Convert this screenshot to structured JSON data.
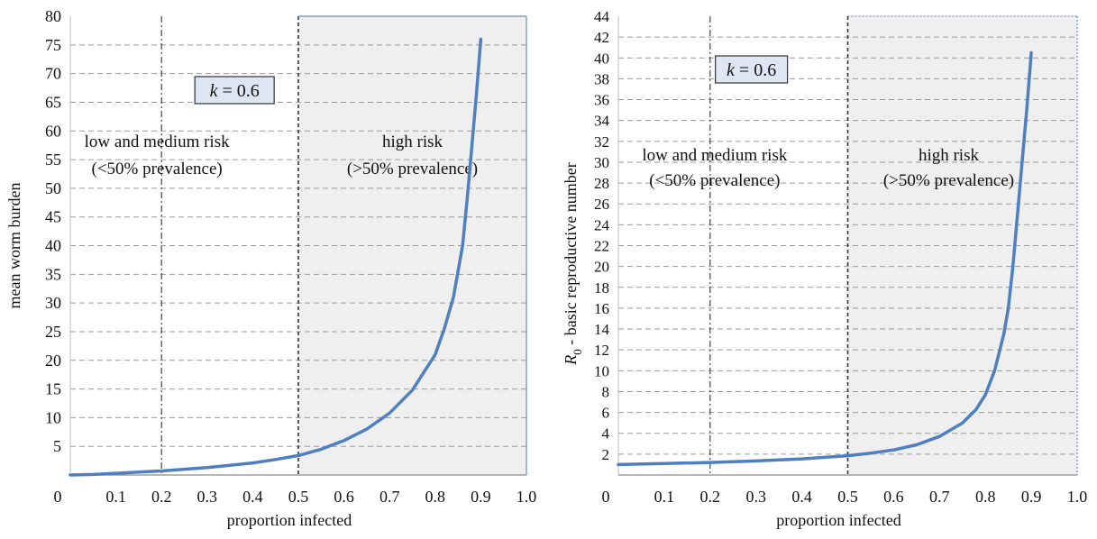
{
  "chart_data": [
    {
      "type": "line",
      "parameter_label": {
        "var": "k",
        "eq": " = ",
        "val": "0.6"
      },
      "xlabel": "proportion infected",
      "ylabel": "mean worm burden",
      "xlim": [
        0,
        1.0
      ],
      "ylim": [
        0,
        80
      ],
      "x_ticks": [
        "0",
        "0.1",
        "0.2",
        "0.3",
        "0.4",
        "0.5",
        "0.6",
        "0.7",
        "0.8",
        "0.9",
        "1.0"
      ],
      "y_ticks": [
        "5",
        "10",
        "15",
        "20",
        "25",
        "30",
        "35",
        "40",
        "45",
        "50",
        "55",
        "60",
        "65",
        "70",
        "75",
        "80"
      ],
      "grid": true,
      "regions": [
        {
          "label_lines": [
            "low and medium risk",
            "(<50% prevalence)"
          ]
        },
        {
          "label_lines": [
            "high risk",
            "(>50% prevalence)"
          ],
          "shaded": true,
          "x_range": [
            0.5,
            1.0
          ]
        }
      ],
      "vertical_lines": [
        0.2,
        0.5
      ],
      "series": [
        {
          "color": "#4f7fbf",
          "x": [
            0.0,
            0.05,
            0.1,
            0.15,
            0.2,
            0.25,
            0.3,
            0.35,
            0.4,
            0.45,
            0.5,
            0.55,
            0.6,
            0.65,
            0.7,
            0.75,
            0.8,
            0.82,
            0.84,
            0.86,
            0.87,
            0.88,
            0.89,
            0.9
          ],
          "y": [
            0.0,
            0.1,
            0.3,
            0.5,
            0.7,
            1.0,
            1.3,
            1.7,
            2.1,
            2.7,
            3.4,
            4.5,
            6.0,
            8.0,
            10.8,
            14.8,
            21.0,
            25.5,
            31.0,
            40.0,
            48.0,
            57.0,
            66.0,
            76.0
          ]
        }
      ]
    },
    {
      "type": "line",
      "parameter_label": {
        "var": "k",
        "eq": " = ",
        "val": "0.6"
      },
      "xlabel": "proportion infected",
      "ylabel": {
        "symbol": "R",
        "subscript": "0",
        "text": " - basic reproductive number"
      },
      "xlim": [
        0,
        1.0
      ],
      "ylim": [
        0,
        44
      ],
      "x_ticks": [
        "0",
        "0.1",
        "0.2",
        "0.3",
        "0.4",
        "0.5",
        "0.6",
        "0.7",
        "0.8",
        "0.9",
        "1.0"
      ],
      "y_ticks": [
        "2",
        "4",
        "6",
        "8",
        "10",
        "12",
        "14",
        "16",
        "18",
        "20",
        "22",
        "24",
        "26",
        "28",
        "30",
        "32",
        "34",
        "36",
        "38",
        "40",
        "42",
        "44"
      ],
      "grid": true,
      "regions": [
        {
          "label_lines": [
            "low and medium risk",
            "(<50% prevalence)"
          ]
        },
        {
          "label_lines": [
            "high risk",
            "(>50% prevalence)"
          ],
          "shaded": true,
          "x_range": [
            0.5,
            1.0
          ]
        }
      ],
      "vertical_lines": [
        0.2,
        0.5
      ],
      "series": [
        {
          "color": "#4f7fbf",
          "x": [
            0.0,
            0.1,
            0.2,
            0.3,
            0.4,
            0.5,
            0.55,
            0.6,
            0.65,
            0.7,
            0.75,
            0.78,
            0.8,
            0.82,
            0.84,
            0.85,
            0.86,
            0.87,
            0.88,
            0.89,
            0.9
          ],
          "y": [
            1.0,
            1.1,
            1.2,
            1.35,
            1.55,
            1.85,
            2.1,
            2.4,
            2.9,
            3.7,
            5.0,
            6.3,
            7.7,
            10.0,
            13.5,
            16.0,
            20.0,
            25.0,
            30.0,
            35.0,
            40.5
          ]
        }
      ]
    }
  ]
}
